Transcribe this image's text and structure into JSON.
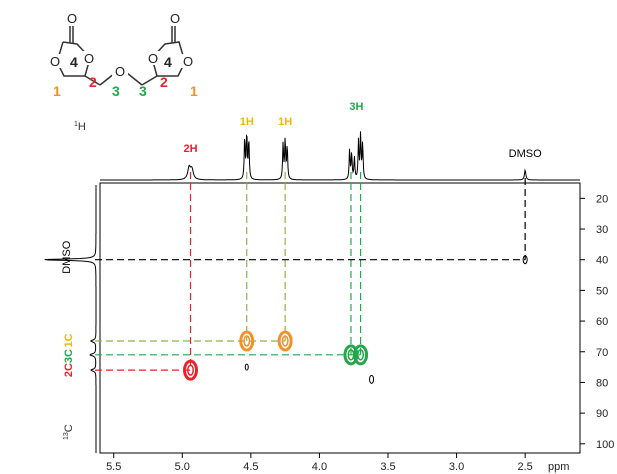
{
  "chart_data": {
    "type": "scatter",
    "title": "",
    "xlabel": "ppm",
    "ylabel_f1": "13C",
    "ylabel_f2": "1H",
    "xlim": [
      5.6,
      2.1
    ],
    "ylim": [
      15,
      103
    ],
    "x_ticks": [
      5.5,
      5.0,
      4.5,
      4.0,
      3.5,
      3.0,
      2.5
    ],
    "x_tick_labels": [
      "5.5",
      "5.0",
      "4.5",
      "4.0",
      "3.5",
      "3.0",
      "2.5"
    ],
    "y_ticks": [
      20,
      30,
      40,
      50,
      60,
      70,
      80,
      90,
      100
    ],
    "y_tick_labels": [
      "20",
      "30",
      "40",
      "50",
      "60",
      "70",
      "80",
      "90",
      "100"
    ],
    "proton_peaks": [
      {
        "label": "2H",
        "ppm": 4.94,
        "color": "#e8232b"
      },
      {
        "label": "1H",
        "ppm": 4.53,
        "color": "#f2b705"
      },
      {
        "label": "1H",
        "ppm": 4.25,
        "color": "#f2b705"
      },
      {
        "label": "3H",
        "ppm": 3.73,
        "color": "#22a84a"
      },
      {
        "label": "DMSO",
        "ppm": 2.5,
        "color": "#000000"
      }
    ],
    "carbon_labels": [
      {
        "label": "DMSO",
        "ppm": 40,
        "color": "#000000"
      },
      {
        "label": "1C",
        "ppm": 66,
        "color": "#f2b705"
      },
      {
        "label": "3C",
        "ppm": 70.5,
        "color": "#22a84a"
      },
      {
        "label": "2C",
        "ppm": 76,
        "color": "#e8232b"
      }
    ],
    "cross_peaks": [
      {
        "name": "C2-H2",
        "h": 4.94,
        "c": 76.0,
        "color": "#e8232b"
      },
      {
        "name": "C1-H1a",
        "h": 4.53,
        "c": 66.5,
        "color": "#f0922b"
      },
      {
        "name": "C1-H1b",
        "h": 4.25,
        "c": 66.5,
        "color": "#f0922b"
      },
      {
        "name": "C3-H3a",
        "h": 3.77,
        "c": 71.0,
        "color": "#22a84a"
      },
      {
        "name": "C3-H3b",
        "h": 3.7,
        "c": 71.0,
        "color": "#22a84a"
      },
      {
        "name": "DMSO",
        "h": 2.5,
        "c": 40.0,
        "color": "#000000"
      },
      {
        "name": "minor-1",
        "h": 4.53,
        "c": 75.0,
        "color": "#000000"
      },
      {
        "name": "minor-2",
        "h": 3.62,
        "c": 79.0,
        "color": "#000000"
      }
    ],
    "molecule": {
      "atom_O": "O",
      "carbonyl_number": "4",
      "position_labels": [
        "1",
        "2",
        "3",
        "3",
        "2",
        "1"
      ]
    }
  }
}
